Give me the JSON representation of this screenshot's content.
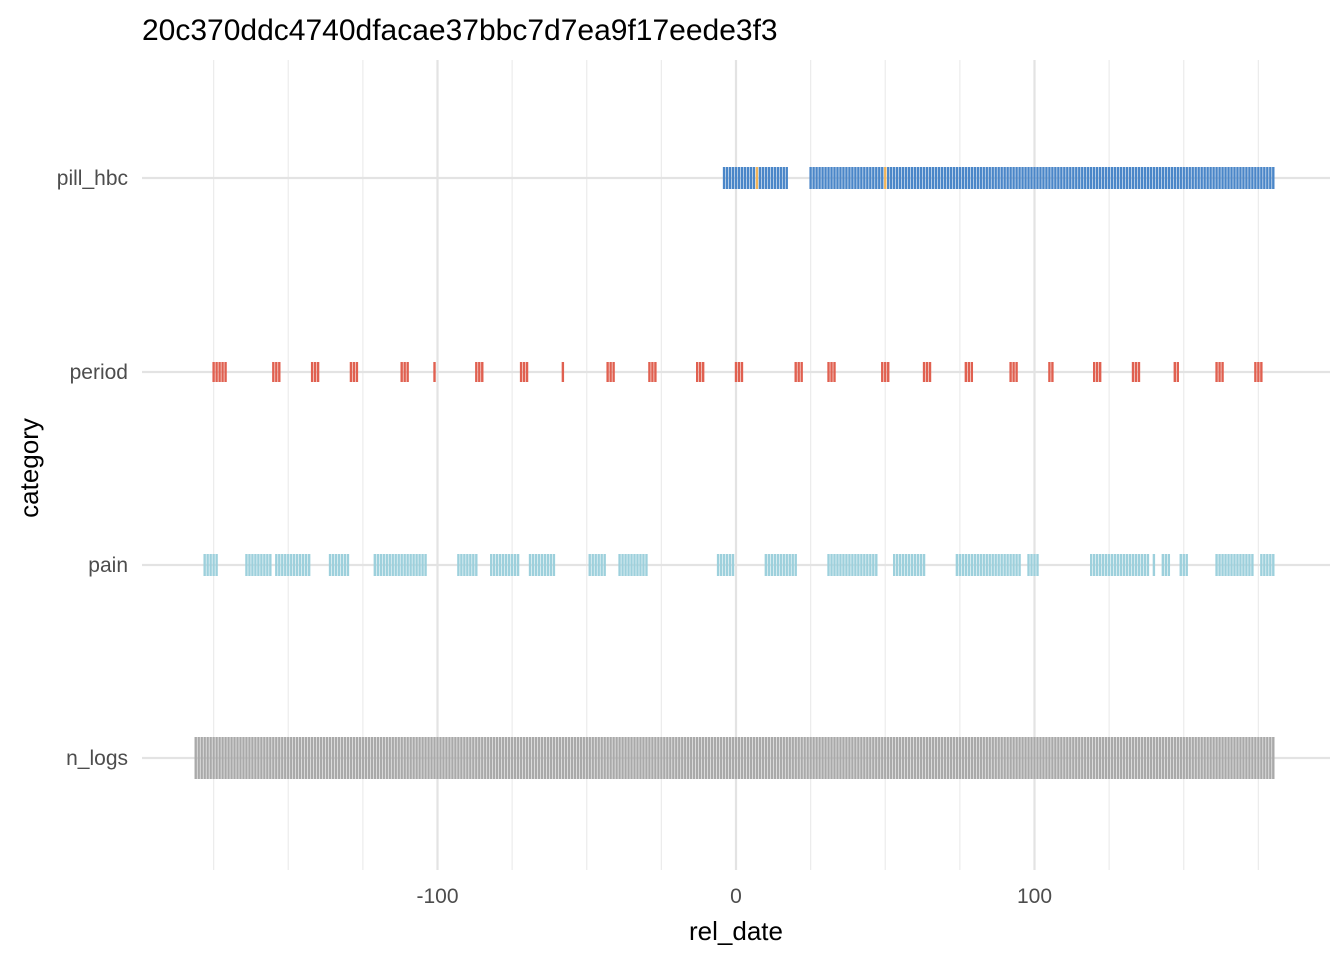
{
  "chart_data": {
    "type": "scatter",
    "title": "20c370ddc4740dfacae37bbc7d7ea9f17eede3f3",
    "xlabel": "rel_date",
    "ylabel": "category",
    "xlim": [
      -182,
      182
    ],
    "x_ticks": [
      -100,
      0,
      100
    ],
    "x_tick_labels": [
      "-100",
      "0",
      "100"
    ],
    "x_minor_gridlines": [
      -175,
      -150,
      -125,
      -75,
      -50,
      -25,
      25,
      50,
      75,
      125,
      150,
      175
    ],
    "categories": [
      "pill_hbc",
      "period",
      "pain",
      "n_logs"
    ],
    "grid": true,
    "legend": "none",
    "series": [
      {
        "category": "pill_hbc",
        "color": "#4a86c8",
        "highlight_color": "#f0b45a",
        "runs": [
          [
            -4,
            17
          ],
          [
            25,
            180
          ]
        ],
        "highlight_x": [
          7,
          50
        ]
      },
      {
        "category": "period",
        "color": "#e06050",
        "runs": [
          [
            -175,
            -171
          ],
          [
            -155,
            -153
          ],
          [
            -142,
            -140
          ],
          [
            -129,
            -127
          ],
          [
            -112,
            -110
          ],
          [
            -101
          ],
          [
            -87,
            -85
          ],
          [
            -72,
            -70
          ],
          [
            -58
          ],
          [
            -43,
            -41
          ],
          [
            -29,
            -27
          ],
          [
            -13,
            -11
          ],
          [
            0,
            2
          ],
          [
            20,
            22
          ],
          [
            31,
            33
          ],
          [
            49,
            51
          ],
          [
            63,
            65
          ],
          [
            77,
            79
          ],
          [
            92,
            94
          ],
          [
            105,
            106
          ],
          [
            120,
            122
          ],
          [
            133,
            135
          ],
          [
            147,
            148
          ],
          [
            161,
            163
          ],
          [
            174,
            176
          ]
        ]
      },
      {
        "category": "pain",
        "color": "#9dd0dc",
        "runs": [
          [
            -178,
            -174
          ],
          [
            -164,
            -156
          ],
          [
            -154,
            -143
          ],
          [
            -136,
            -130
          ],
          [
            -121,
            -104
          ],
          [
            -93,
            -87
          ],
          [
            -82,
            -73
          ],
          [
            -69,
            -61
          ],
          [
            -49,
            -44
          ],
          [
            -39,
            -30
          ],
          [
            -6,
            -1
          ],
          [
            10,
            20
          ],
          [
            31,
            47
          ],
          [
            53,
            63
          ],
          [
            74,
            95
          ],
          [
            98,
            101
          ],
          [
            119,
            138
          ],
          [
            140
          ],
          [
            143,
            145
          ],
          [
            149,
            151
          ],
          [
            161,
            173
          ],
          [
            176,
            180
          ]
        ]
      },
      {
        "category": "n_logs",
        "color": "#a9a9a9",
        "runs": [
          [
            -181,
            180
          ]
        ]
      }
    ]
  }
}
